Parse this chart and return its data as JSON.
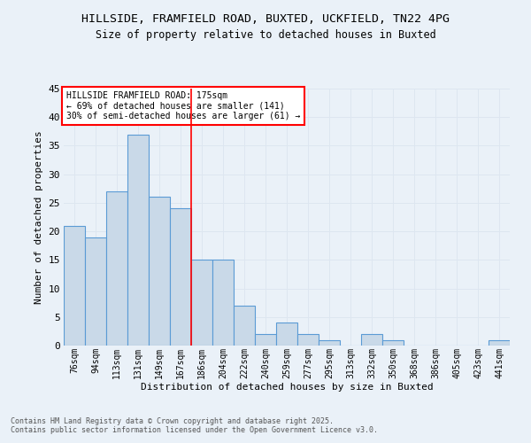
{
  "title_line1": "HILLSIDE, FRAMFIELD ROAD, BUXTED, UCKFIELD, TN22 4PG",
  "title_line2": "Size of property relative to detached houses in Buxted",
  "xlabel": "Distribution of detached houses by size in Buxted",
  "ylabel": "Number of detached properties",
  "categories": [
    "76sqm",
    "94sqm",
    "113sqm",
    "131sqm",
    "149sqm",
    "167sqm",
    "186sqm",
    "204sqm",
    "222sqm",
    "240sqm",
    "259sqm",
    "277sqm",
    "295sqm",
    "313sqm",
    "332sqm",
    "350sqm",
    "368sqm",
    "386sqm",
    "405sqm",
    "423sqm",
    "441sqm"
  ],
  "values": [
    21,
    19,
    27,
    37,
    26,
    24,
    15,
    15,
    7,
    2,
    4,
    2,
    1,
    0,
    2,
    1,
    0,
    0,
    0,
    0,
    1
  ],
  "bar_color": "#c9d9e8",
  "bar_edge_color": "#5b9bd5",
  "annotation_text": "HILLSIDE FRAMFIELD ROAD: 175sqm\n← 69% of detached houses are smaller (141)\n30% of semi-detached houses are larger (61) →",
  "annotation_box_color": "white",
  "annotation_box_edge_color": "red",
  "vline_x": 5.5,
  "vline_color": "red",
  "ylim": [
    0,
    45
  ],
  "yticks": [
    0,
    5,
    10,
    15,
    20,
    25,
    30,
    35,
    40,
    45
  ],
  "grid_color": "#dde6f0",
  "background_color": "#eaf1f8",
  "footer_line1": "Contains HM Land Registry data © Crown copyright and database right 2025.",
  "footer_line2": "Contains public sector information licensed under the Open Government Licence v3.0."
}
